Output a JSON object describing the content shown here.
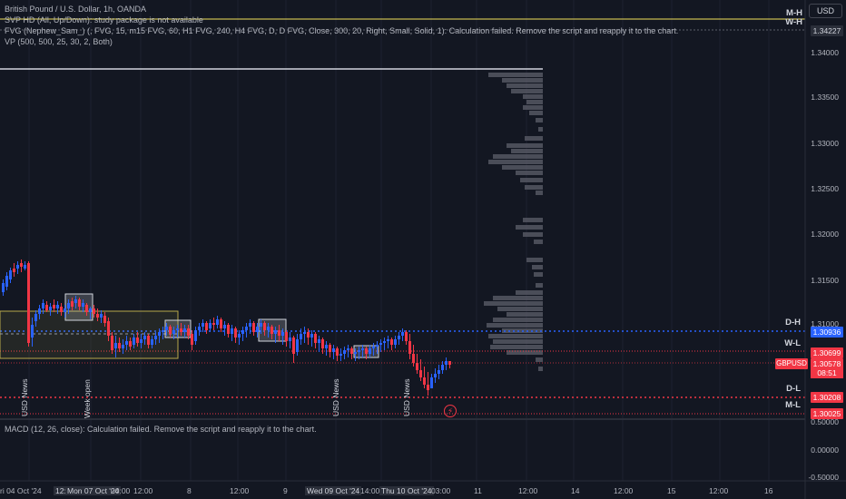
{
  "legend": {
    "title": "British Pound / U.S. Dollar, 1h, OANDA",
    "svp": "SVP HD (All, Up/Down): study package is not available",
    "fvg": "FVG (Nephew_Sam_) (, FVG, 15, m15 FVG, 60, H1 FVG, 240, H4 FVG, D, D FVG, Close, 300, 20, Right, Small, Solid, 1): Calculation failed. Remove the script and reapply it to the chart.",
    "vp": "VP (500, 500, 25, 30, 2, Both)",
    "macd": "MACD (12, 26, close): Calculation failed. Remove the script and reapply it to the chart."
  },
  "currency_button": "USD",
  "price_axis": {
    "ticks": [
      "1.34000",
      "1.33500",
      "1.33000",
      "1.32500",
      "1.32000",
      "1.31500",
      "1.31000"
    ],
    "macd_ticks": [
      "0.50000",
      "0.00000",
      "-0.50000"
    ]
  },
  "level_tags": {
    "mh": "M-H",
    "wh": "W-H",
    "dh": "D-H",
    "wl": "W-L",
    "dl": "D-L",
    "ml": "M-L"
  },
  "price_tags": {
    "wh": "1.34227",
    "dh": "1.30936",
    "wl": "1.30699",
    "current": "1.30578",
    "timer": "08:51",
    "dl": "1.30208",
    "ml": "1.30025",
    "symbol": "GBPUSD"
  },
  "colors": {
    "background": "#131722",
    "bull": "#2962ff",
    "bear": "#f23645",
    "level_blue": "#2962ff",
    "level_red": "#f23645",
    "month_high": "#f2e15a"
  },
  "time_axis": [
    "ri 04 Oct '24",
    "12:00",
    "Mon 07 Oct '24",
    "00:00",
    "12:00",
    "8",
    "12:00",
    "9",
    "Wed 09 Oct '24",
    "14:00",
    "Thu 10 Oct '24",
    "03:00",
    "11",
    "12:00",
    "14",
    "12:00",
    "15",
    "12:00",
    "16"
  ],
  "annotations": {
    "usd_news_1": "USD News",
    "week_open": "Week open",
    "usd_news_2": "USD News",
    "usd_news_3": "USD News",
    "bolt_icon": "lightning-icon"
  }
}
